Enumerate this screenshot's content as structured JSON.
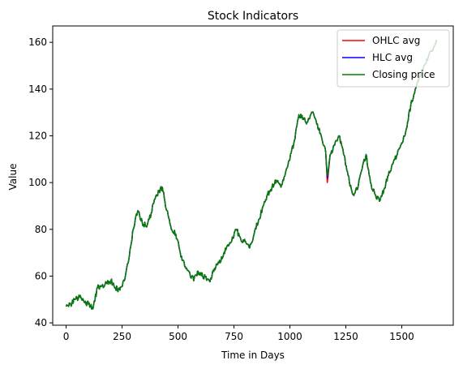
{
  "chart_data": {
    "type": "line",
    "title": "Stock Indicators",
    "xlabel": "Time in Days",
    "ylabel": "Value",
    "xlim": [
      -60,
      1730
    ],
    "ylim": [
      39,
      167
    ],
    "x_ticks": [
      0,
      250,
      500,
      750,
      1000,
      1250,
      1500
    ],
    "y_ticks": [
      40,
      60,
      80,
      100,
      120,
      140,
      160
    ],
    "grid": false,
    "legend_position": "upper right",
    "series": [
      {
        "name": "OHLC avg",
        "color": "#ff0000",
        "points": [
          [
            0,
            47
          ],
          [
            20,
            48
          ],
          [
            40,
            50
          ],
          [
            60,
            51
          ],
          [
            80,
            49
          ],
          [
            100,
            48
          ],
          [
            120,
            46
          ],
          [
            140,
            55
          ],
          [
            160,
            56
          ],
          [
            180,
            57
          ],
          [
            200,
            58
          ],
          [
            220,
            55
          ],
          [
            240,
            54
          ],
          [
            260,
            58
          ],
          [
            280,
            67
          ],
          [
            300,
            80
          ],
          [
            320,
            88
          ],
          [
            340,
            83
          ],
          [
            360,
            81
          ],
          [
            380,
            87
          ],
          [
            400,
            94
          ],
          [
            430,
            98
          ],
          [
            450,
            88
          ],
          [
            470,
            80
          ],
          [
            490,
            78
          ],
          [
            510,
            70
          ],
          [
            530,
            64
          ],
          [
            550,
            62
          ],
          [
            570,
            58
          ],
          [
            590,
            62
          ],
          [
            610,
            60
          ],
          [
            640,
            58
          ],
          [
            660,
            62
          ],
          [
            680,
            66
          ],
          [
            700,
            68
          ],
          [
            720,
            73
          ],
          [
            740,
            75
          ],
          [
            760,
            80
          ],
          [
            780,
            76
          ],
          [
            800,
            75
          ],
          [
            820,
            72
          ],
          [
            840,
            78
          ],
          [
            860,
            84
          ],
          [
            880,
            90
          ],
          [
            900,
            95
          ],
          [
            920,
            98
          ],
          [
            940,
            101
          ],
          [
            960,
            98
          ],
          [
            980,
            104
          ],
          [
            1000,
            110
          ],
          [
            1020,
            118
          ],
          [
            1040,
            129
          ],
          [
            1060,
            127
          ],
          [
            1080,
            126
          ],
          [
            1100,
            130
          ],
          [
            1120,
            125
          ],
          [
            1140,
            120
          ],
          [
            1160,
            113
          ],
          [
            1167,
            100
          ],
          [
            1180,
            112
          ],
          [
            1200,
            116
          ],
          [
            1220,
            120
          ],
          [
            1240,
            112
          ],
          [
            1260,
            103
          ],
          [
            1280,
            95
          ],
          [
            1300,
            97
          ],
          [
            1320,
            105
          ],
          [
            1340,
            112
          ],
          [
            1360,
            100
          ],
          [
            1380,
            95
          ],
          [
            1400,
            92
          ],
          [
            1420,
            97
          ],
          [
            1440,
            103
          ],
          [
            1460,
            108
          ],
          [
            1480,
            112
          ],
          [
            1500,
            117
          ],
          [
            1520,
            123
          ],
          [
            1540,
            133
          ],
          [
            1560,
            140
          ],
          [
            1580,
            145
          ],
          [
            1600,
            150
          ],
          [
            1620,
            154
          ],
          [
            1640,
            157
          ],
          [
            1655,
            161
          ]
        ]
      },
      {
        "name": "HLC avg",
        "color": "#0000ff",
        "points": [
          [
            0,
            47
          ],
          [
            20,
            48
          ],
          [
            40,
            50
          ],
          [
            60,
            51
          ],
          [
            80,
            49
          ],
          [
            100,
            48
          ],
          [
            120,
            46
          ],
          [
            140,
            55
          ],
          [
            160,
            56
          ],
          [
            180,
            57
          ],
          [
            200,
            58
          ],
          [
            220,
            55
          ],
          [
            240,
            54
          ],
          [
            260,
            58
          ],
          [
            280,
            67
          ],
          [
            300,
            80
          ],
          [
            320,
            88
          ],
          [
            340,
            83
          ],
          [
            360,
            81
          ],
          [
            380,
            87
          ],
          [
            400,
            94
          ],
          [
            430,
            98
          ],
          [
            450,
            88
          ],
          [
            470,
            80
          ],
          [
            490,
            78
          ],
          [
            510,
            70
          ],
          [
            530,
            64
          ],
          [
            550,
            62
          ],
          [
            570,
            58
          ],
          [
            590,
            62
          ],
          [
            610,
            60
          ],
          [
            640,
            58
          ],
          [
            660,
            62
          ],
          [
            680,
            66
          ],
          [
            700,
            68
          ],
          [
            720,
            73
          ],
          [
            740,
            75
          ],
          [
            760,
            80
          ],
          [
            780,
            76
          ],
          [
            800,
            75
          ],
          [
            820,
            72
          ],
          [
            840,
            78
          ],
          [
            860,
            84
          ],
          [
            880,
            90
          ],
          [
            900,
            95
          ],
          [
            920,
            98
          ],
          [
            940,
            101
          ],
          [
            960,
            98
          ],
          [
            980,
            104
          ],
          [
            1000,
            110
          ],
          [
            1020,
            118
          ],
          [
            1040,
            129
          ],
          [
            1060,
            127
          ],
          [
            1080,
            126
          ],
          [
            1100,
            130
          ],
          [
            1120,
            125
          ],
          [
            1140,
            120
          ],
          [
            1160,
            113
          ],
          [
            1167,
            102
          ],
          [
            1180,
            112
          ],
          [
            1200,
            116
          ],
          [
            1220,
            120
          ],
          [
            1240,
            112
          ],
          [
            1260,
            103
          ],
          [
            1280,
            95
          ],
          [
            1300,
            97
          ],
          [
            1320,
            105
          ],
          [
            1340,
            112
          ],
          [
            1360,
            100
          ],
          [
            1380,
            95
          ],
          [
            1400,
            92
          ],
          [
            1420,
            97
          ],
          [
            1440,
            103
          ],
          [
            1460,
            108
          ],
          [
            1480,
            112
          ],
          [
            1500,
            117
          ],
          [
            1520,
            123
          ],
          [
            1540,
            133
          ],
          [
            1560,
            140
          ],
          [
            1580,
            145
          ],
          [
            1600,
            150
          ],
          [
            1620,
            154
          ],
          [
            1640,
            157
          ],
          [
            1655,
            161
          ]
        ]
      },
      {
        "name": "Closing price",
        "color": "#008000",
        "points": [
          [
            0,
            47
          ],
          [
            20,
            48
          ],
          [
            40,
            50
          ],
          [
            60,
            51
          ],
          [
            80,
            49
          ],
          [
            100,
            48
          ],
          [
            120,
            46
          ],
          [
            140,
            55
          ],
          [
            160,
            56
          ],
          [
            180,
            57
          ],
          [
            200,
            58
          ],
          [
            220,
            55
          ],
          [
            240,
            54
          ],
          [
            260,
            58
          ],
          [
            280,
            67
          ],
          [
            300,
            80
          ],
          [
            320,
            88
          ],
          [
            340,
            83
          ],
          [
            360,
            81
          ],
          [
            380,
            87
          ],
          [
            400,
            94
          ],
          [
            430,
            98
          ],
          [
            450,
            88
          ],
          [
            470,
            80
          ],
          [
            490,
            78
          ],
          [
            510,
            70
          ],
          [
            530,
            64
          ],
          [
            550,
            62
          ],
          [
            570,
            58
          ],
          [
            590,
            62
          ],
          [
            610,
            60
          ],
          [
            640,
            58
          ],
          [
            660,
            62
          ],
          [
            680,
            66
          ],
          [
            700,
            68
          ],
          [
            720,
            73
          ],
          [
            740,
            75
          ],
          [
            760,
            80
          ],
          [
            780,
            76
          ],
          [
            800,
            75
          ],
          [
            820,
            72
          ],
          [
            840,
            78
          ],
          [
            860,
            84
          ],
          [
            880,
            90
          ],
          [
            900,
            95
          ],
          [
            920,
            98
          ],
          [
            940,
            101
          ],
          [
            960,
            98
          ],
          [
            980,
            104
          ],
          [
            1000,
            110
          ],
          [
            1020,
            118
          ],
          [
            1040,
            129
          ],
          [
            1060,
            127
          ],
          [
            1080,
            126
          ],
          [
            1100,
            130
          ],
          [
            1120,
            125
          ],
          [
            1140,
            120
          ],
          [
            1160,
            113
          ],
          [
            1167,
            103
          ],
          [
            1180,
            112
          ],
          [
            1200,
            116
          ],
          [
            1220,
            120
          ],
          [
            1240,
            112
          ],
          [
            1260,
            103
          ],
          [
            1280,
            95
          ],
          [
            1300,
            97
          ],
          [
            1320,
            105
          ],
          [
            1340,
            112
          ],
          [
            1360,
            100
          ],
          [
            1380,
            95
          ],
          [
            1400,
            92
          ],
          [
            1420,
            97
          ],
          [
            1440,
            103
          ],
          [
            1460,
            108
          ],
          [
            1480,
            112
          ],
          [
            1500,
            117
          ],
          [
            1520,
            123
          ],
          [
            1540,
            133
          ],
          [
            1560,
            140
          ],
          [
            1580,
            145
          ],
          [
            1600,
            150
          ],
          [
            1620,
            154
          ],
          [
            1640,
            157
          ],
          [
            1655,
            161
          ]
        ]
      }
    ]
  }
}
